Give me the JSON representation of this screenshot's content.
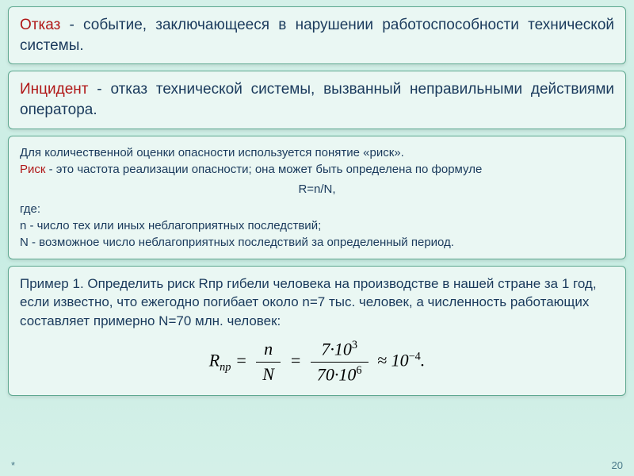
{
  "panel1": {
    "term": "Отказ",
    "text": " - событие, заключающееся в нарушении работоспособности технической системы."
  },
  "panel2": {
    "term": "Инцидент",
    "text": " - отказ технической системы, вызванный неправильными действиями оператора."
  },
  "panel3": {
    "intro": "Для количественной оценки опасности используется понятие «риск».",
    "risk_term": "Риск",
    "risk_def": " - это частота реализации опасности; она может быть определена по формуле",
    "formula": "R=n/N,",
    "where": "где:",
    "n_def": "n - число тех или иных неблагоприятных последствий;",
    "N_def": "N - возможное число неблагоприятных последствий за определенный период."
  },
  "panel4": {
    "text": "Пример 1. Определить риск Rпр гибели человека на производстве в нашей стране за 1 год, если известно, что ежегодно погибает около n=7 тыс. человек, а численность работающих составляет примерно N=70 млн. человек:"
  },
  "math": {
    "R": "R",
    "sub": "np",
    "eq": "=",
    "n": "n",
    "N": "N",
    "num1": "7·10",
    "exp1": "3",
    "den1": "70·10",
    "exp2": "6",
    "approx": "≈ 10",
    "exp3": "−4",
    "dot": "."
  },
  "page": "20",
  "star": "*",
  "colors": {
    "term": "#b01818",
    "body_text": "#1a3a5c",
    "panel_bg": "#eaf7f3",
    "panel_border": "#5ea890",
    "page_bg_top": "#d4f0e8"
  }
}
